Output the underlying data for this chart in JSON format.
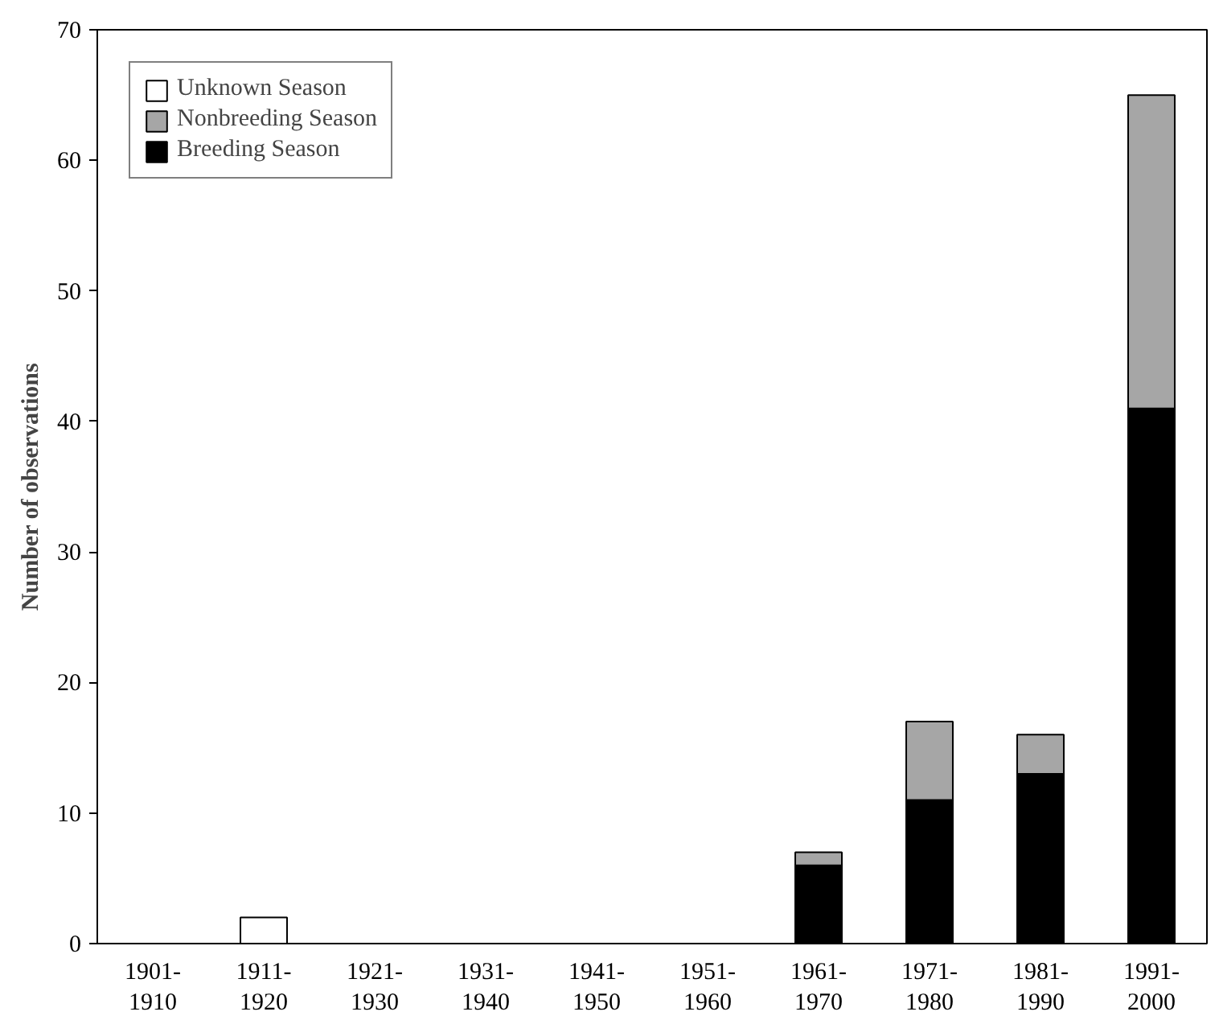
{
  "chart_data": {
    "type": "bar",
    "stacked": true,
    "ylabel": "Number of observations",
    "categories": [
      "1901-\n1910",
      "1911-\n1920",
      "1921-\n1930",
      "1931-\n1940",
      "1941-\n1950",
      "1951-\n1960",
      "1961-\n1970",
      "1971-\n1980",
      "1981-\n1990",
      "1991-\n2000"
    ],
    "series": [
      {
        "name": "Breeding Season",
        "color": "#000000",
        "values": [
          0,
          0,
          0,
          0,
          0,
          0,
          6,
          11,
          13,
          41
        ]
      },
      {
        "name": "Nonbreeding Season",
        "color": "#a6a6a6",
        "values": [
          0,
          0,
          0,
          0,
          0,
          0,
          1,
          6,
          3,
          24
        ]
      },
      {
        "name": "Unknown Season",
        "color": "#ffffff",
        "values": [
          0,
          2,
          0,
          0,
          0,
          0,
          0,
          0,
          0,
          0
        ]
      }
    ],
    "ylim": [
      0,
      70
    ],
    "yticks": [
      0,
      10,
      20,
      30,
      40,
      50,
      60,
      70
    ],
    "grid": false,
    "legend": "top left"
  }
}
